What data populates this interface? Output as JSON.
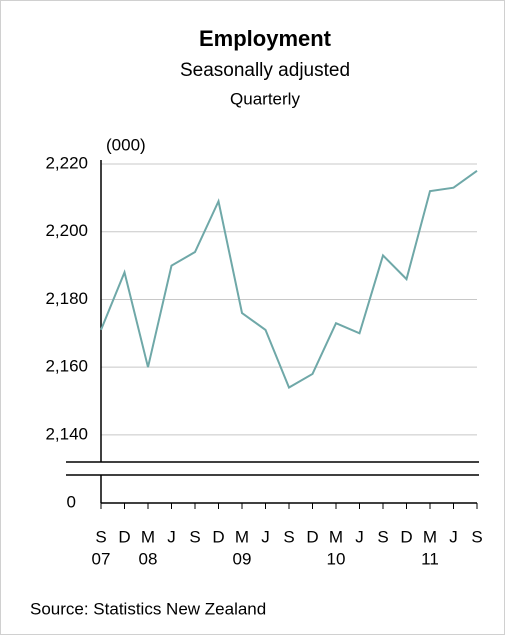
{
  "chart_data": {
    "type": "line",
    "title": "Employment",
    "subtitle": "Seasonally adjusted",
    "frequency": "Quarterly",
    "y_unit": "(000)",
    "categories": [
      "S",
      "D",
      "M",
      "J",
      "S",
      "D",
      "M",
      "J",
      "S",
      "D",
      "M",
      "J",
      "S",
      "D",
      "M",
      "J",
      "S"
    ],
    "year_labels": [
      "07",
      null,
      "08",
      null,
      null,
      null,
      "09",
      null,
      null,
      null,
      "10",
      null,
      null,
      null,
      "11",
      null,
      null
    ],
    "series": [
      {
        "name": "Employment",
        "color": "#6fa8a8",
        "values": [
          2171,
          2188,
          2160,
          2190,
          2194,
          2209,
          2176,
          2171,
          2154,
          2158,
          2173,
          2170,
          2193,
          2186,
          2212,
          2213,
          2218
        ]
      }
    ],
    "ylim": [
      2132,
      2220
    ],
    "yticks": [
      {
        "value": 2140,
        "label": "2,140"
      },
      {
        "value": 2160,
        "label": "2,160"
      },
      {
        "value": 2180,
        "label": "2,180"
      },
      {
        "value": 2200,
        "label": "2,200"
      },
      {
        "value": 2220,
        "label": "2,220"
      }
    ],
    "axis_break_tick": {
      "value": 0,
      "label": "0"
    },
    "grid": true,
    "source": "Source: Statistics New Zealand"
  }
}
